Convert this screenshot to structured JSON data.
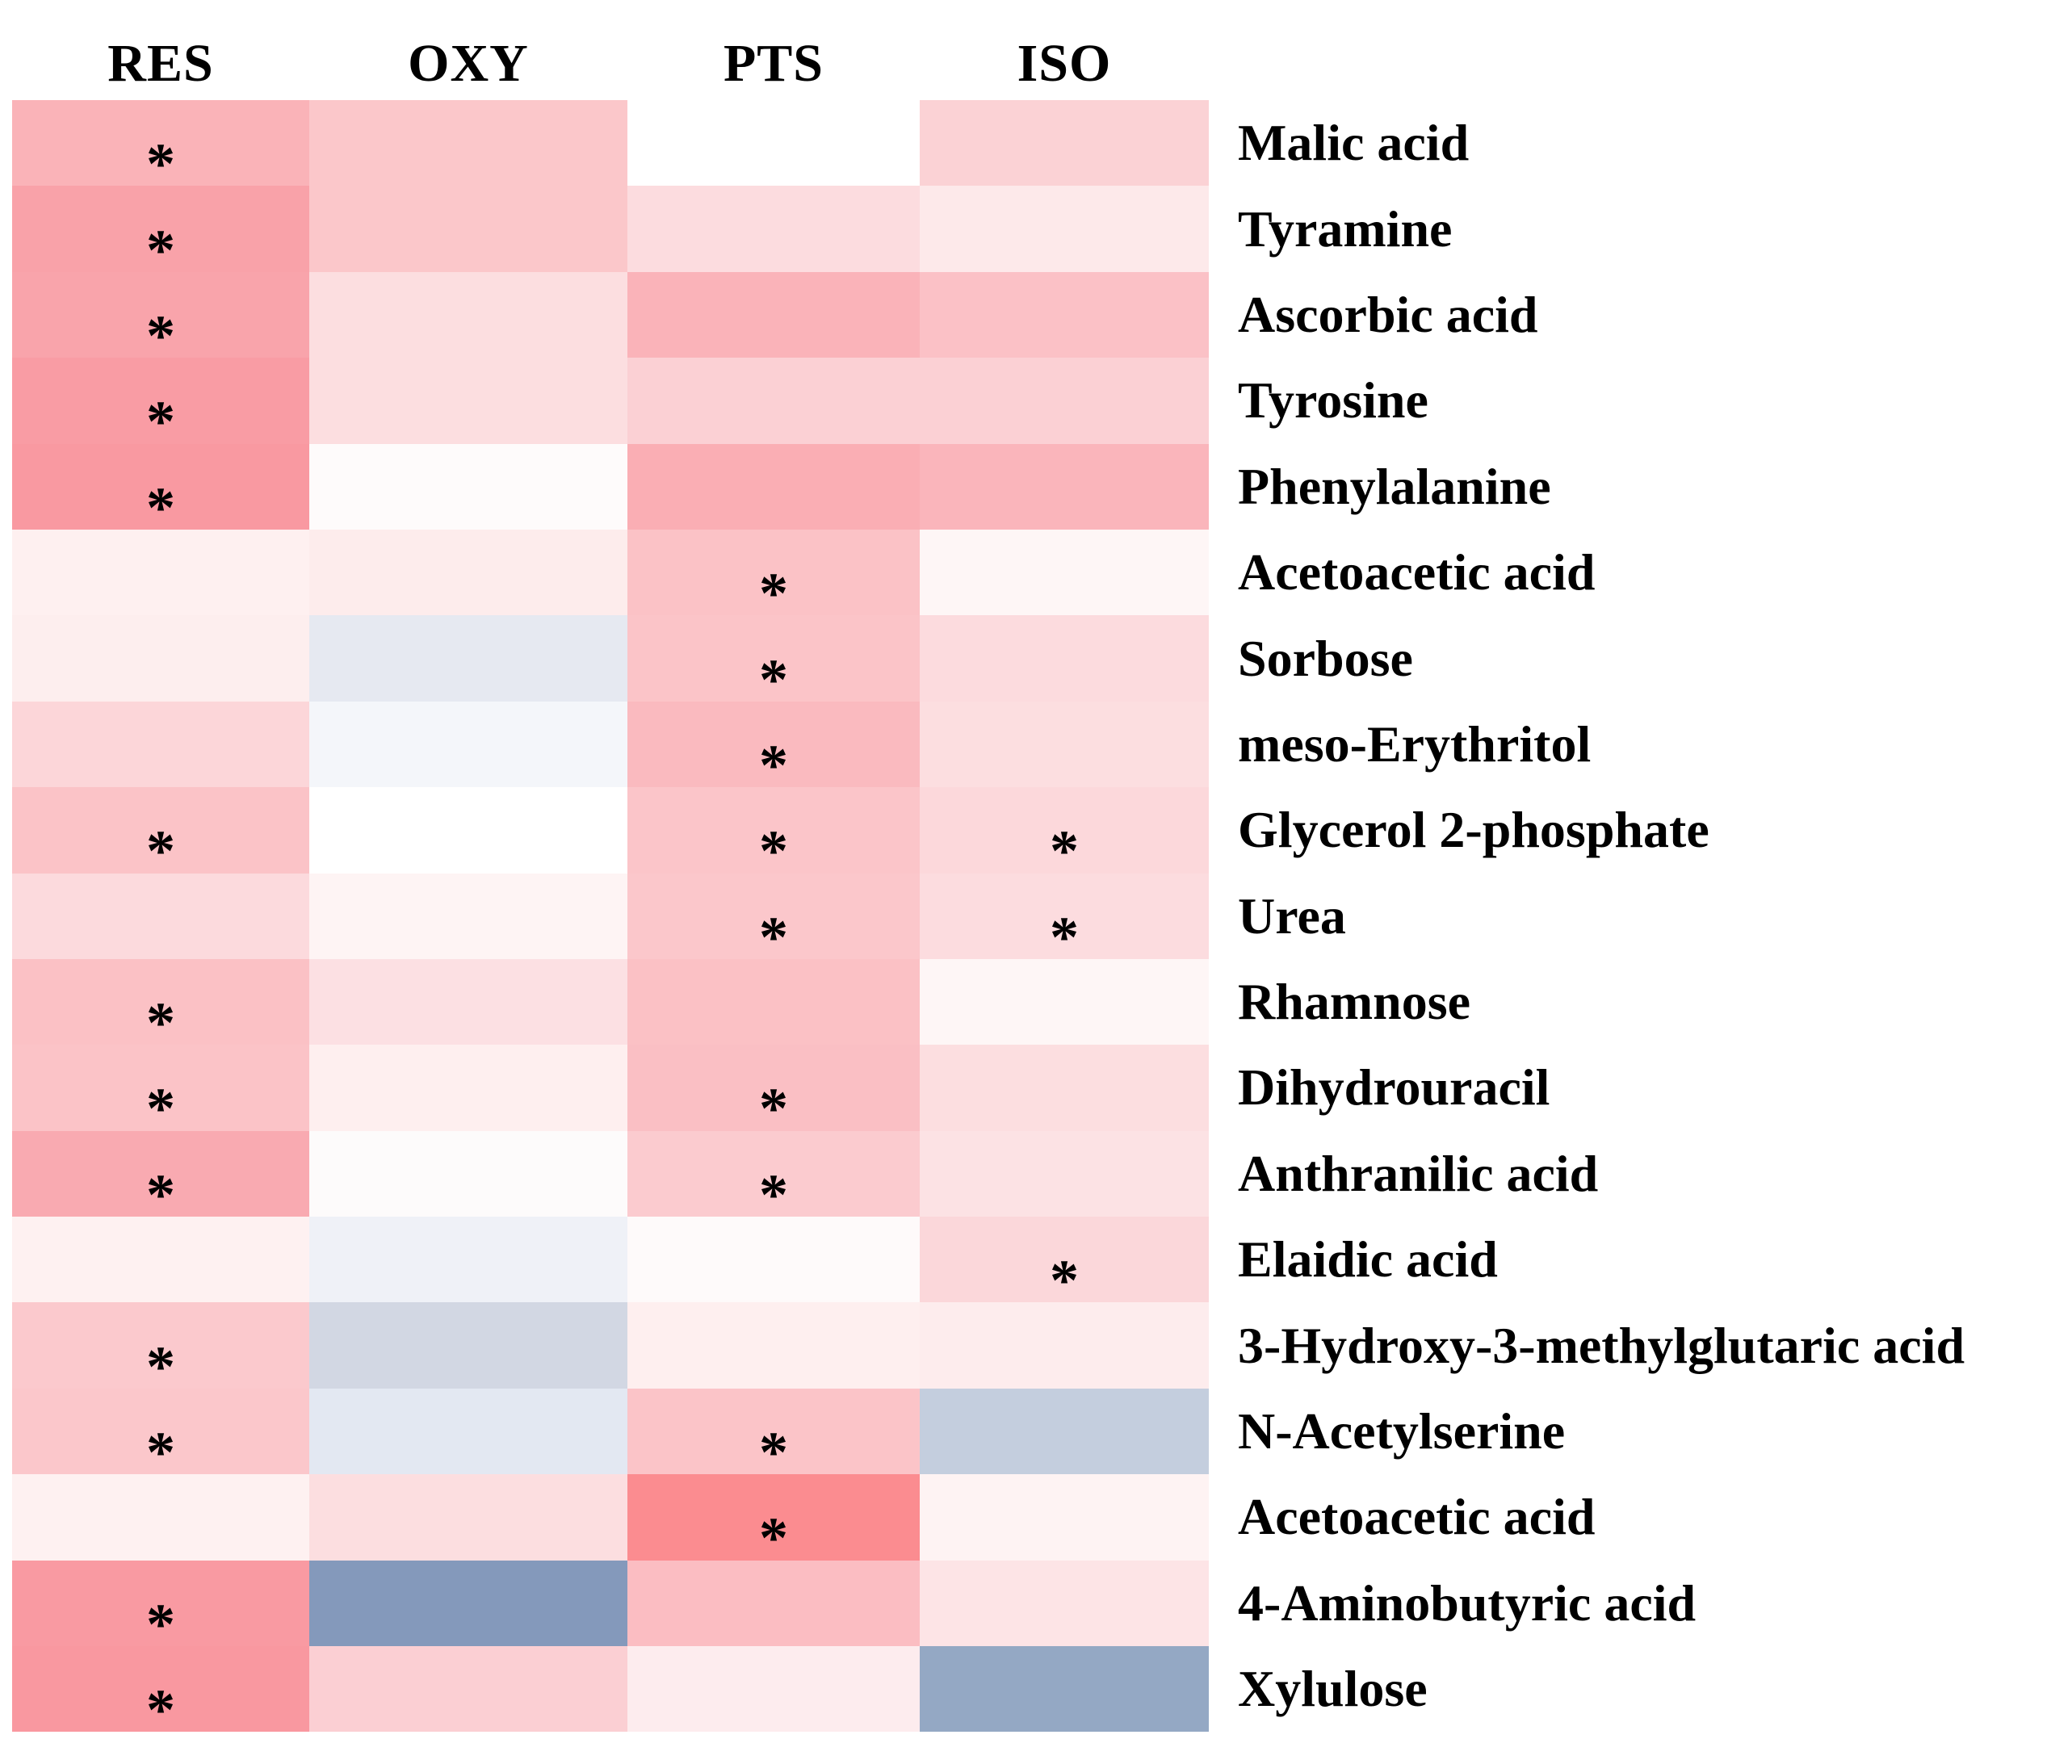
{
  "chart_data": {
    "type": "heatmap",
    "title": "",
    "columns": [
      "RES",
      "OXY",
      "PTS",
      "ISO"
    ],
    "significance_marker": "*",
    "marker_color": "#000000",
    "legend": "none",
    "grid": false,
    "rows": [
      {
        "label": "Malic acid",
        "cell_colors": [
          "#FAB3B8",
          "#FBC7CA",
          "#FFFFFF",
          "#FBD2D5"
        ],
        "significant": [
          true,
          false,
          false,
          false
        ]
      },
      {
        "label": "Tyramine",
        "cell_colors": [
          "#F9A2A9",
          "#FBC7CA",
          "#FCDCDF",
          "#FDE9EA"
        ],
        "significant": [
          true,
          false,
          false,
          false
        ]
      },
      {
        "label": "Ascorbic acid",
        "cell_colors": [
          "#F9A4AB",
          "#FCDEE0",
          "#FAB3B9",
          "#FBC1C6"
        ],
        "significant": [
          true,
          false,
          false,
          false
        ]
      },
      {
        "label": "Tyrosine",
        "cell_colors": [
          "#F99CA4",
          "#FCDEE0",
          "#FBD0D4",
          "#FBD0D4"
        ],
        "significant": [
          true,
          false,
          false,
          false
        ]
      },
      {
        "label": "Phenylalanine",
        "cell_colors": [
          "#F999A1",
          "#FEFBFB",
          "#FAAEB4",
          "#FAB5BB"
        ],
        "significant": [
          true,
          false,
          false,
          false
        ]
      },
      {
        "label": "Acetoacetic acid",
        "cell_colors": [
          "#FEF0F0",
          "#FDECEC",
          "#FBC2C6",
          "#FEF6F6"
        ],
        "significant": [
          false,
          false,
          true,
          false
        ]
      },
      {
        "label": "Sorbose",
        "cell_colors": [
          "#FDEEEE",
          "#E6E9F1",
          "#FBC4C8",
          "#FCDBDE"
        ],
        "significant": [
          false,
          false,
          true,
          false
        ]
      },
      {
        "label": "meso-Erythritol",
        "cell_colors": [
          "#FCD6D9",
          "#F4F6FA",
          "#FABABF",
          "#FCDEE0"
        ],
        "significant": [
          false,
          false,
          true,
          false
        ]
      },
      {
        "label": "Glycerol 2-phosphate",
        "cell_colors": [
          "#FBC3C7",
          "#FFFFFF",
          "#FBC5C9",
          "#FCD8DB"
        ],
        "significant": [
          true,
          false,
          true,
          true
        ]
      },
      {
        "label": "Urea",
        "cell_colors": [
          "#FCDADD",
          "#FEF4F4",
          "#FBC7CB",
          "#FCDCDF"
        ],
        "significant": [
          false,
          false,
          true,
          true
        ]
      },
      {
        "label": "Rhamnose",
        "cell_colors": [
          "#FBC1C5",
          "#FCE0E3",
          "#FBC1C5",
          "#FEF6F6"
        ],
        "significant": [
          true,
          false,
          false,
          false
        ]
      },
      {
        "label": "Dihydrouracil",
        "cell_colors": [
          "#FBC3C7",
          "#FEEFEF",
          "#FABFC4",
          "#FCDEE0"
        ],
        "significant": [
          true,
          false,
          true,
          false
        ]
      },
      {
        "label": "Anthranilic acid",
        "cell_colors": [
          "#F9AAB1",
          "#FDFBFB",
          "#FBCBCF",
          "#FCE2E4"
        ],
        "significant": [
          true,
          false,
          true,
          false
        ]
      },
      {
        "label": "Elaidic acid",
        "cell_colors": [
          "#FEF1F1",
          "#EFF1F7",
          "#FEFAFA",
          "#FBD7DA"
        ],
        "significant": [
          false,
          false,
          false,
          true
        ]
      },
      {
        "label": "3-Hydroxy-3-methylglutaric acid",
        "cell_colors": [
          "#FBC9CD",
          "#D2D7E3",
          "#FEEFEF",
          "#FDECED"
        ],
        "significant": [
          true,
          false,
          false,
          false
        ]
      },
      {
        "label": "N-Acetylserine",
        "cell_colors": [
          "#FBC7CB",
          "#E3E8F2",
          "#FBC4C8",
          "#C4CEDE"
        ],
        "significant": [
          true,
          false,
          true,
          false
        ]
      },
      {
        "label": "Acetoacetic acid",
        "cell_colors": [
          "#FEF1F1",
          "#FCDEE0",
          "#FB8C90",
          "#FEF3F3"
        ],
        "significant": [
          false,
          false,
          true,
          false
        ]
      },
      {
        "label": "4-Aminobutyric acid",
        "cell_colors": [
          "#F99AA2",
          "#8499BB",
          "#FBBDC2",
          "#FDE4E6"
        ],
        "significant": [
          true,
          false,
          false,
          false
        ]
      },
      {
        "label": "Xylulose",
        "cell_colors": [
          "#F998A0",
          "#FBCFD3",
          "#FDECEE",
          "#94A8C4"
        ],
        "significant": [
          true,
          false,
          false,
          false
        ]
      }
    ]
  }
}
